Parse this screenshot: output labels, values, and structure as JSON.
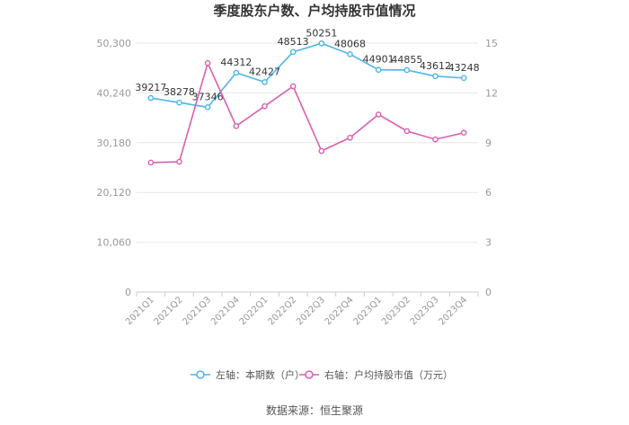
{
  "colors": {
    "left": "#4db5e8",
    "right": "#d95fb0",
    "grid": "#e6e6e6",
    "axis": "#cccccc"
  },
  "chart_data": {
    "type": "line",
    "title": "季度股东户数、户均持股市值情况",
    "categories": [
      "2021Q1",
      "2021Q2",
      "2021Q3",
      "2021Q4",
      "2022Q1",
      "2022Q2",
      "2022Q3",
      "2022Q4",
      "2023Q1",
      "2023Q2",
      "2023Q3",
      "2023Q4"
    ],
    "y_left": {
      "ticks": [
        "0",
        "10,060",
        "20,120",
        "30,180",
        "40,240",
        "50,300"
      ],
      "ylim": [
        0,
        50300
      ]
    },
    "y_right": {
      "ticks": [
        "0",
        "3",
        "6",
        "9",
        "12",
        "15"
      ],
      "ylim": [
        0,
        15
      ]
    },
    "series": [
      {
        "name": "左轴：本期数（户）",
        "axis": "left",
        "values": [
          39217,
          38278,
          37346,
          44312,
          42427,
          48513,
          50251,
          48068,
          44901,
          44855,
          43612,
          43248
        ],
        "labels": [
          "39217",
          "38278",
          "37346",
          "44312",
          "42427",
          "48513",
          "50251",
          "48068",
          "44901",
          "44855",
          "43612",
          "43248"
        ]
      },
      {
        "name": "右轴：户均持股市值（万元）",
        "axis": "right",
        "values": [
          7.8,
          7.85,
          13.8,
          10.0,
          11.2,
          12.4,
          8.5,
          9.3,
          10.7,
          9.7,
          9.2,
          9.6
        ]
      }
    ],
    "grid": true,
    "legend": "bottom-center"
  },
  "source": "数据来源：恒生聚源"
}
